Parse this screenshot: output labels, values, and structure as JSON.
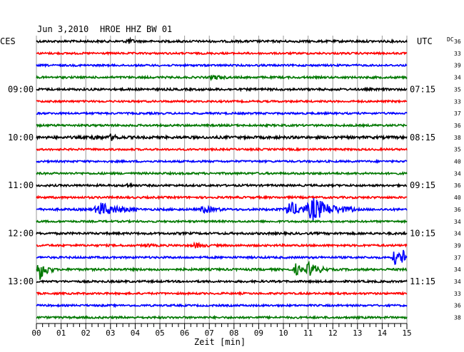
{
  "chart_data": {
    "type": "line",
    "title": "Jun 3,2010",
    "station_label": "HROE HHZ BW 01",
    "left_timezone": "CES",
    "right_timezone": "UTC",
    "right_header": "DC",
    "xlabel": "Zeit [min]",
    "xlim": [
      0,
      15
    ],
    "x_ticks": [
      "00",
      "01",
      "02",
      "03",
      "04",
      "05",
      "06",
      "07",
      "08",
      "09",
      "10",
      "11",
      "12",
      "13",
      "14",
      "15"
    ],
    "trace_count": 24,
    "trace_colors": [
      "#000000",
      "#ff0000",
      "#0000ff",
      "#007800"
    ],
    "left_hour_labels": [
      {
        "trace_index": 4,
        "label": "09:00"
      },
      {
        "trace_index": 8,
        "label": "10:00"
      },
      {
        "trace_index": 12,
        "label": "11:00"
      },
      {
        "trace_index": 16,
        "label": "12:00"
      },
      {
        "trace_index": 20,
        "label": "13:00"
      }
    ],
    "right_hour_labels": [
      {
        "trace_index": 4,
        "label": "07:15"
      },
      {
        "trace_index": 8,
        "label": "08:15"
      },
      {
        "trace_index": 12,
        "label": "09:15"
      },
      {
        "trace_index": 16,
        "label": "10:15"
      },
      {
        "trace_index": 20,
        "label": "11:15"
      }
    ],
    "dc_offsets": [
      "36",
      "33",
      "39",
      "34",
      "35",
      "33",
      "37",
      "36",
      "38",
      "35",
      "40",
      "34",
      "36",
      "40",
      "36",
      "34",
      "34",
      "39",
      "37",
      "34",
      "34",
      "33",
      "36",
      "38"
    ],
    "noise_amplitude": [
      1.5,
      1.3,
      1.3,
      1.4,
      1.5,
      1.3,
      1.3,
      1.4,
      1.8,
      1.3,
      1.3,
      1.4,
      1.4,
      1.4,
      1.5,
      1.3,
      1.5,
      1.4,
      1.4,
      1.5,
      1.4,
      1.3,
      1.3,
      1.4
    ],
    "events": [
      {
        "trace_index": 0,
        "start_min": 3.6,
        "duration_min": 0.5,
        "amplitude": 4
      },
      {
        "trace_index": 3,
        "start_min": 7.0,
        "duration_min": 0.8,
        "amplitude": 3
      },
      {
        "trace_index": 8,
        "start_min": 2.2,
        "duration_min": 0.6,
        "amplitude": 3
      },
      {
        "trace_index": 8,
        "start_min": 2.9,
        "duration_min": 0.6,
        "amplitude": 4
      },
      {
        "trace_index": 12,
        "start_min": 3.6,
        "duration_min": 0.4,
        "amplitude": 3
      },
      {
        "trace_index": 14,
        "start_min": 2.3,
        "duration_min": 1.8,
        "amplitude": 9
      },
      {
        "trace_index": 14,
        "start_min": 6.6,
        "duration_min": 1.0,
        "amplitude": 5
      },
      {
        "trace_index": 14,
        "start_min": 10.0,
        "duration_min": 1.6,
        "amplitude": 10
      },
      {
        "trace_index": 14,
        "start_min": 10.9,
        "duration_min": 2.0,
        "amplitude": 14
      },
      {
        "trace_index": 17,
        "start_min": 6.3,
        "duration_min": 0.8,
        "amplitude": 3
      },
      {
        "trace_index": 17,
        "start_min": 4.4,
        "duration_min": 0.4,
        "amplitude": 2
      },
      {
        "trace_index": 18,
        "start_min": 14.4,
        "duration_min": 0.6,
        "amplitude": 10
      },
      {
        "trace_index": 18,
        "start_min": 14.8,
        "duration_min": 0.2,
        "amplitude": 18
      },
      {
        "trace_index": 19,
        "start_min": 0.0,
        "duration_min": 0.7,
        "amplitude": 16
      },
      {
        "trace_index": 19,
        "start_min": 10.4,
        "duration_min": 0.6,
        "amplitude": 8
      },
      {
        "trace_index": 19,
        "start_min": 10.9,
        "duration_min": 0.9,
        "amplitude": 10
      }
    ],
    "grid": true
  }
}
